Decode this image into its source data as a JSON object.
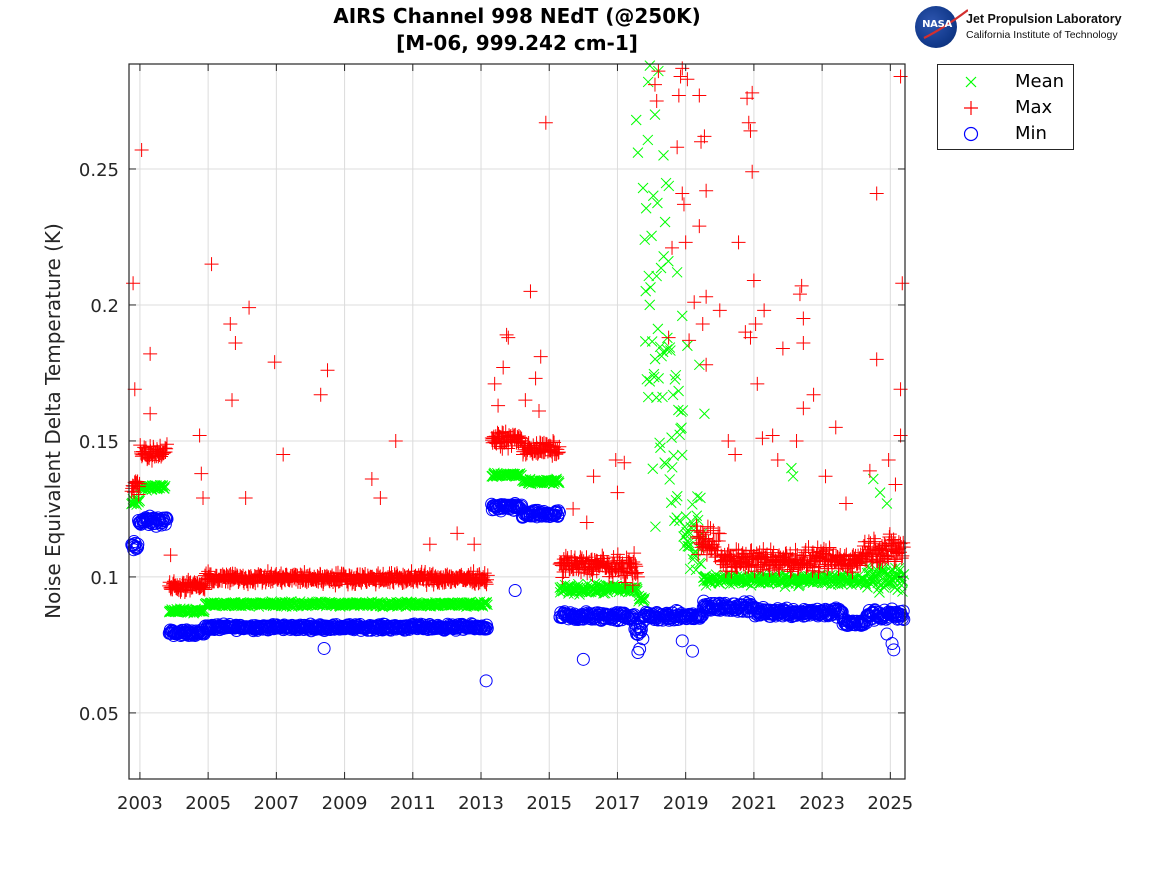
{
  "title": {
    "line1": "AIRS Channel 998 NEdT (@250K)",
    "line2": "[M-06, 999.242 cm-1]"
  },
  "logo": {
    "emblem": "NASA",
    "name": "Jet Propulsion Laboratory",
    "subtitle": "California Institute of Technology"
  },
  "legend": {
    "items": [
      {
        "label": "Mean",
        "marker": "x",
        "color": "#00ff00"
      },
      {
        "label": "Max",
        "marker": "+",
        "color": "#ff0000"
      },
      {
        "label": "Min",
        "marker": "o",
        "color": "#0000ff"
      }
    ]
  },
  "chart_data": {
    "type": "scatter",
    "title": "AIRS Channel 998 NEdT (@250K) [M-06, 999.242 cm-1]",
    "xlabel": "",
    "ylabel": "Noise Equivalent Delta Temperature (K)",
    "xlim": [
      2002.68,
      2025.43
    ],
    "ylim": [
      0.0257,
      0.2886
    ],
    "xticks": [
      2003,
      2005,
      2007,
      2009,
      2011,
      2013,
      2015,
      2017,
      2019,
      2021,
      2023,
      2025
    ],
    "xtick_labels": [
      "2003",
      "2005",
      "2007",
      "2009",
      "2011",
      "2013",
      "2015",
      "2017",
      "2019",
      "2021",
      "2023",
      "2025"
    ],
    "yticks": [
      0.05,
      0.1,
      0.15,
      0.2,
      0.25
    ],
    "ytick_labels": [
      "0.05",
      "0.1",
      "0.15",
      "0.2",
      "0.25"
    ],
    "grid": true,
    "legend_position": "outside-top-right",
    "series": [
      {
        "name": "Mean",
        "marker": "x",
        "color": "#00ff00",
        "segments": [
          {
            "x": [
              2002.75,
              2003.0
            ],
            "level": 0.128,
            "spread": 0.004
          },
          {
            "x": [
              2003.0,
              2003.75
            ],
            "level": 0.133,
            "spread": 0.0015
          },
          {
            "x": [
              2003.85,
              2004.9
            ],
            "level": 0.0875,
            "spread": 0.001
          },
          {
            "x": [
              2004.9,
              2013.2
            ],
            "level": 0.09,
            "spread": 0.0012
          },
          {
            "x": [
              2013.3,
              2014.2
            ],
            "level": 0.1375,
            "spread": 0.0012
          },
          {
            "x": [
              2014.2,
              2015.3
            ],
            "level": 0.135,
            "spread": 0.0012
          },
          {
            "x": [
              2015.3,
              2017.6
            ],
            "level": 0.0955,
            "spread": 0.0025
          },
          {
            "x": [
              2017.6,
              2017.8
            ],
            "level": 0.092,
            "spread": 0.002
          },
          {
            "x": [
              2017.8,
              2018.55
            ],
            "level": 0.19,
            "spread": 0.09
          },
          {
            "x": [
              2018.55,
              2018.95
            ],
            "level": 0.15,
            "spread": 0.05
          },
          {
            "x": [
              2018.95,
              2019.5
            ],
            "level": 0.115,
            "spread": 0.02
          },
          {
            "x": [
              2019.5,
              2024.3
            ],
            "level": 0.099,
            "spread": 0.003
          },
          {
            "x": [
              2024.3,
              2025.4
            ],
            "level": 0.099,
            "spread": 0.008
          }
        ],
        "outliers": [
          [
            2017.55,
            0.268
          ],
          [
            2017.6,
            0.256
          ],
          [
            2017.75,
            0.243
          ],
          [
            2017.8,
            0.224
          ],
          [
            2017.9,
            0.282
          ],
          [
            2017.95,
            0.288
          ],
          [
            2018.1,
            0.27
          ],
          [
            2018.2,
            0.286
          ],
          [
            2018.35,
            0.255
          ],
          [
            2018.75,
            0.212
          ],
          [
            2018.9,
            0.196
          ],
          [
            2019.05,
            0.185
          ],
          [
            2019.4,
            0.178
          ],
          [
            2019.55,
            0.16
          ],
          [
            2022.1,
            0.14
          ],
          [
            2022.15,
            0.137
          ],
          [
            2024.5,
            0.136
          ],
          [
            2024.7,
            0.131
          ],
          [
            2024.9,
            0.127
          ]
        ]
      },
      {
        "name": "Max",
        "marker": "+",
        "color": "#ff0000",
        "segments": [
          {
            "x": [
              2002.75,
              2003.0
            ],
            "level": 0.134,
            "spread": 0.006
          },
          {
            "x": [
              2003.0,
              2003.8
            ],
            "level": 0.146,
            "spread": 0.004
          },
          {
            "x": [
              2003.85,
              2004.9
            ],
            "level": 0.0965,
            "spread": 0.003
          },
          {
            "x": [
              2004.9,
              2013.2
            ],
            "level": 0.0995,
            "spread": 0.003
          },
          {
            "x": [
              2013.3,
              2014.2
            ],
            "level": 0.1505,
            "spread": 0.004
          },
          {
            "x": [
              2014.2,
              2015.3
            ],
            "level": 0.147,
            "spread": 0.004
          },
          {
            "x": [
              2015.3,
              2016.7
            ],
            "level": 0.1045,
            "spread": 0.005
          },
          {
            "x": [
              2016.7,
              2017.6
            ],
            "level": 0.1035,
            "spread": 0.006
          },
          {
            "x": [
              2019.3,
              2020.0
            ],
            "level": 0.113,
            "spread": 0.01
          },
          {
            "x": [
              2020.0,
              2024.2
            ],
            "level": 0.106,
            "spread": 0.006
          },
          {
            "x": [
              2024.2,
              2025.4
            ],
            "level": 0.11,
            "spread": 0.008
          }
        ],
        "outliers": [
          [
            2002.8,
            0.208
          ],
          [
            2002.85,
            0.169
          ],
          [
            2003.05,
            0.257
          ],
          [
            2003.3,
            0.182
          ],
          [
            2003.3,
            0.16
          ],
          [
            2003.9,
            0.108
          ],
          [
            2004.75,
            0.152
          ],
          [
            2004.8,
            0.138
          ],
          [
            2004.85,
            0.129
          ],
          [
            2005.1,
            0.215
          ],
          [
            2005.65,
            0.193
          ],
          [
            2005.7,
            0.165
          ],
          [
            2005.8,
            0.186
          ],
          [
            2006.2,
            0.199
          ],
          [
            2006.1,
            0.129
          ],
          [
            2006.95,
            0.179
          ],
          [
            2007.2,
            0.145
          ],
          [
            2008.3,
            0.167
          ],
          [
            2008.5,
            0.176
          ],
          [
            2009.8,
            0.136
          ],
          [
            2010.05,
            0.129
          ],
          [
            2010.5,
            0.15
          ],
          [
            2011.5,
            0.112
          ],
          [
            2012.3,
            0.116
          ],
          [
            2012.8,
            0.112
          ],
          [
            2013.4,
            0.171
          ],
          [
            2013.75,
            0.189
          ],
          [
            2013.8,
            0.188
          ],
          [
            2013.65,
            0.177
          ],
          [
            2014.3,
            0.165
          ],
          [
            2014.45,
            0.205
          ],
          [
            2014.6,
            0.173
          ],
          [
            2014.75,
            0.181
          ],
          [
            2014.7,
            0.161
          ],
          [
            2014.9,
            0.267
          ],
          [
            2013.5,
            0.163
          ],
          [
            2015.7,
            0.125
          ],
          [
            2016.1,
            0.12
          ],
          [
            2016.3,
            0.137
          ],
          [
            2016.95,
            0.143
          ],
          [
            2017.0,
            0.131
          ],
          [
            2017.2,
            0.142
          ],
          [
            2017.45,
            0.097
          ],
          [
            2018.1,
            0.281
          ],
          [
            2018.2,
            0.286
          ],
          [
            2018.15,
            0.275
          ],
          [
            2018.9,
            0.287
          ],
          [
            2018.85,
            0.284
          ],
          [
            2018.8,
            0.277
          ],
          [
            2019.05,
            0.283
          ],
          [
            2019.4,
            0.277
          ],
          [
            2019.45,
            0.26
          ],
          [
            2019.55,
            0.262
          ],
          [
            2019.6,
            0.242
          ],
          [
            2018.75,
            0.258
          ],
          [
            2018.9,
            0.241
          ],
          [
            2018.95,
            0.237
          ],
          [
            2019.4,
            0.229
          ],
          [
            2018.6,
            0.221
          ],
          [
            2019.0,
            0.223
          ],
          [
            2019.6,
            0.203
          ],
          [
            2019.25,
            0.201
          ],
          [
            2019.5,
            0.193
          ],
          [
            2018.5,
            0.188
          ],
          [
            2019.1,
            0.187
          ],
          [
            2019.6,
            0.178
          ],
          [
            2020.0,
            0.198
          ],
          [
            2020.55,
            0.223
          ],
          [
            2020.8,
            0.276
          ],
          [
            2020.85,
            0.267
          ],
          [
            2020.9,
            0.264
          ],
          [
            2020.95,
            0.278
          ],
          [
            2020.95,
            0.249
          ],
          [
            2021.0,
            0.209
          ],
          [
            2021.05,
            0.193
          ],
          [
            2020.9,
            0.188
          ],
          [
            2020.75,
            0.19
          ],
          [
            2021.1,
            0.171
          ],
          [
            2021.3,
            0.198
          ],
          [
            2021.85,
            0.184
          ],
          [
            2022.35,
            0.204
          ],
          [
            2022.4,
            0.207
          ],
          [
            2022.45,
            0.195
          ],
          [
            2022.45,
            0.186
          ],
          [
            2022.45,
            0.162
          ],
          [
            2022.75,
            0.167
          ],
          [
            2023.4,
            0.155
          ],
          [
            2023.1,
            0.137
          ],
          [
            2024.6,
            0.241
          ],
          [
            2024.6,
            0.18
          ],
          [
            2025.3,
            0.284
          ],
          [
            2025.35,
            0.208
          ],
          [
            2025.3,
            0.169
          ],
          [
            2025.3,
            0.152
          ],
          [
            2024.95,
            0.143
          ],
          [
            2025.15,
            0.134
          ],
          [
            2024.4,
            0.139
          ],
          [
            2021.25,
            0.151
          ],
          [
            2021.7,
            0.143
          ],
          [
            2020.25,
            0.15
          ],
          [
            2020.45,
            0.145
          ],
          [
            2021.55,
            0.152
          ],
          [
            2022.25,
            0.15
          ],
          [
            2023.7,
            0.127
          ]
        ]
      },
      {
        "name": "Min",
        "marker": "o",
        "color": "#0000ff",
        "segments": [
          {
            "x": [
              2002.75,
              2002.95
            ],
            "level": 0.111,
            "spread": 0.003
          },
          {
            "x": [
              2002.95,
              2003.8
            ],
            "level": 0.1205,
            "spread": 0.0025
          },
          {
            "x": [
              2003.85,
              2004.9
            ],
            "level": 0.0795,
            "spread": 0.0015
          },
          {
            "x": [
              2004.9,
              2013.2
            ],
            "level": 0.0815,
            "spread": 0.0015
          },
          {
            "x": [
              2013.3,
              2014.2
            ],
            "level": 0.1255,
            "spread": 0.002
          },
          {
            "x": [
              2014.2,
              2015.3
            ],
            "level": 0.123,
            "spread": 0.002
          },
          {
            "x": [
              2015.3,
              2017.5
            ],
            "level": 0.0855,
            "spread": 0.0025
          },
          {
            "x": [
              2017.5,
              2017.75
            ],
            "level": 0.08,
            "spread": 0.004
          },
          {
            "x": [
              2017.75,
              2019.5
            ],
            "level": 0.0855,
            "spread": 0.0025
          },
          {
            "x": [
              2019.5,
              2021.0
            ],
            "level": 0.089,
            "spread": 0.0025
          },
          {
            "x": [
              2021.0,
              2023.6
            ],
            "level": 0.087,
            "spread": 0.0025
          },
          {
            "x": [
              2023.6,
              2024.3
            ],
            "level": 0.083,
            "spread": 0.002
          },
          {
            "x": [
              2024.3,
              2025.4
            ],
            "level": 0.086,
            "spread": 0.003
          }
        ],
        "outliers": [
          [
            2008.4,
            0.0737
          ],
          [
            2013.15,
            0.0618
          ],
          [
            2014.0,
            0.095
          ],
          [
            2016.0,
            0.0697
          ],
          [
            2017.6,
            0.0722
          ],
          [
            2017.65,
            0.0735
          ],
          [
            2018.9,
            0.0765
          ],
          [
            2019.2,
            0.0727
          ],
          [
            2025.1,
            0.0732
          ],
          [
            2025.05,
            0.0755
          ],
          [
            2024.9,
            0.079
          ]
        ]
      }
    ]
  }
}
